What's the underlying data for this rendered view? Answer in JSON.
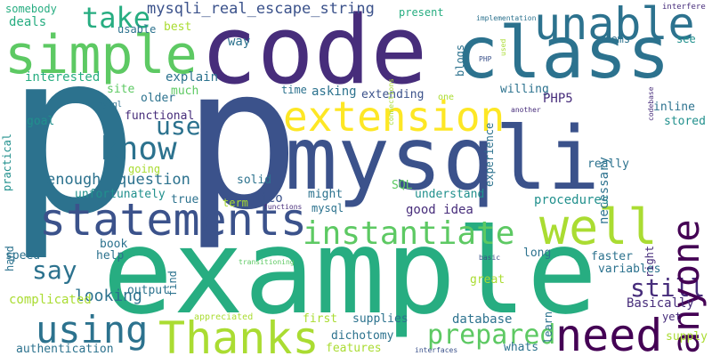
{
  "word_cloud": {
    "palette": {
      "purple": "#440154",
      "indigo": "#472d7b",
      "blue": "#3b528b",
      "steel": "#2c728e",
      "teal": "#21908d",
      "green": "#27ad81",
      "lime": "#5dc963",
      "yellowgreen": "#aadc32",
      "yellow": "#fde725"
    },
    "words": [
      "p",
      "p",
      "code",
      "class",
      "mysqli",
      "example",
      "simple",
      "unable",
      "extension",
      "statements",
      "know",
      "instantiate",
      "well",
      "anyone",
      "Thanks",
      "using",
      "need",
      "prepared",
      "take",
      "mysqli_real_escape_string",
      "use",
      "say",
      "still",
      "looking",
      "enough",
      "question",
      "somebody",
      "deals",
      "best",
      "usable",
      "blogs",
      "present",
      "implementation",
      "interfere",
      "used",
      "connections",
      "PHP",
      "way",
      "seems",
      "see",
      "explain",
      "much",
      "interested",
      "practical",
      "older",
      "site",
      "time",
      "asking",
      "extending",
      "one",
      "experience",
      "willing",
      "codebase",
      "another",
      "mysql",
      "goal",
      "functional",
      "necessary",
      "PHP5",
      "inline",
      "stored",
      "going",
      "unfortunately",
      "solid",
      "really",
      "Nico",
      "SQL",
      "might",
      "understand",
      "true",
      "term",
      "mysql",
      "functions",
      "good idea",
      "procedures",
      "hand",
      "book",
      "find",
      "right",
      "speed",
      "help",
      "transitioning",
      "long",
      "faster",
      "variables",
      "output",
      "complicated",
      "basic",
      "great",
      "learn",
      "Basically",
      "appreciated",
      "first",
      "supplies",
      "database",
      "yet",
      "supply",
      "dichotomy",
      "whats",
      "authentication",
      "features",
      "interfaces"
    ]
  }
}
